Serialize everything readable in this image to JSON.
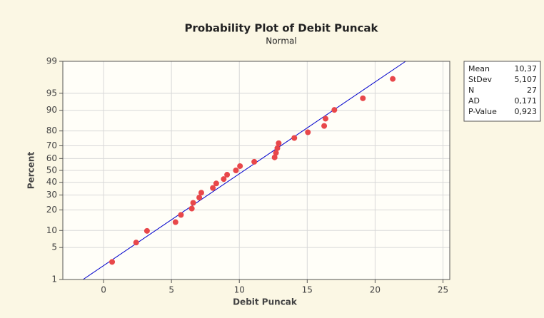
{
  "chart_data": {
    "type": "probability",
    "title": "Probability Plot of Debit Puncak",
    "subtitle": "Normal",
    "xlabel": "Debit Puncak",
    "ylabel": "Percent",
    "yscale": "normal-probability",
    "grid": true,
    "color": "#e8474a",
    "line_color": "#0000cc",
    "x": [
      0.63,
      2.4,
      3.2,
      5.3,
      5.7,
      6.5,
      6.6,
      7.05,
      7.2,
      8.05,
      8.3,
      8.85,
      9.1,
      9.75,
      10.05,
      11.1,
      12.6,
      12.7,
      12.8,
      12.9,
      14.05,
      15.05,
      16.25,
      16.35,
      17.0,
      19.1,
      21.3
    ],
    "values": [
      2.55,
      6.2,
      9.85,
      13.5,
      17.15,
      20.8,
      24.45,
      28.1,
      31.75,
      35.4,
      39.05,
      42.7,
      46.35,
      50.0,
      53.65,
      57.3,
      60.95,
      64.6,
      68.25,
      71.9,
      75.55,
      79.2,
      82.85,
      86.5,
      90.15,
      93.8,
      97.45
    ],
    "xlim": [
      -3,
      25.5
    ],
    "xticks": [
      0,
      5,
      10,
      15,
      20,
      25
    ],
    "ylim": [
      1,
      99
    ],
    "yticks": [
      1,
      5,
      10,
      20,
      30,
      40,
      50,
      60,
      70,
      80,
      90,
      95,
      99
    ],
    "stats": [
      {
        "name": "Mean",
        "value": 10.37,
        "label": "10,37"
      },
      {
        "name": "StDev",
        "value": 5.107,
        "label": "5,107"
      },
      {
        "name": "N",
        "value": 27,
        "label": "27"
      },
      {
        "name": "AD",
        "value": 0.171,
        "label": "0,171"
      },
      {
        "name": "P-Value",
        "value": 0.923,
        "label": "0,923"
      }
    ]
  }
}
